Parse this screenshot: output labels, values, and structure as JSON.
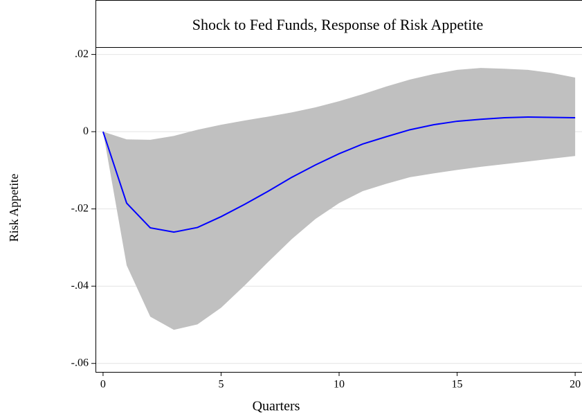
{
  "chart_data": {
    "type": "line",
    "title": "Shock to Fed Funds, Response of Risk Appetite",
    "xlabel": "Quarters",
    "ylabel": "Risk Appetite",
    "x": [
      0,
      1,
      2,
      3,
      4,
      5,
      6,
      7,
      8,
      9,
      10,
      11,
      12,
      13,
      14,
      15,
      16,
      17,
      18,
      19,
      20
    ],
    "series": [
      {
        "color": "#0000ff",
        "values": [
          0,
          -0.0185,
          -0.0249,
          -0.026,
          -0.0248,
          -0.022,
          -0.0188,
          -0.0154,
          -0.0118,
          -0.0086,
          -0.0057,
          -0.0032,
          -0.0013,
          0.0005,
          0.0018,
          0.0027,
          0.0032,
          0.0036,
          0.0038,
          0.0037,
          0.0036
        ]
      }
    ],
    "band": {
      "color": "#c0c0c0",
      "upper": [
        0,
        -0.002,
        -0.0021,
        -0.0011,
        0.0005,
        0.0018,
        0.0029,
        0.0039,
        0.005,
        0.0063,
        0.0079,
        0.0097,
        0.0117,
        0.0135,
        0.0149,
        0.016,
        0.0165,
        0.0163,
        0.016,
        0.0152,
        0.014
      ],
      "lower": [
        0,
        -0.0346,
        -0.0479,
        -0.0513,
        -0.0499,
        -0.0456,
        -0.0398,
        -0.0337,
        -0.0278,
        -0.0226,
        -0.0185,
        -0.0154,
        -0.0135,
        -0.0118,
        -0.0108,
        -0.0099,
        -0.0091,
        -0.0084,
        -0.0077,
        -0.007,
        -0.0063
      ]
    },
    "xlim": [
      -0.32,
      20.29
    ],
    "ylim": [
      -0.0622,
      0.0219
    ],
    "xticks": [
      0,
      5,
      10,
      15,
      20
    ],
    "yticks": [
      {
        "value": 0.02,
        "label": ".02"
      },
      0,
      {
        "value": -0.02,
        "label": "-.02"
      },
      {
        "value": -0.04,
        "label": "-.04"
      },
      {
        "value": -0.06,
        "label": "-.06"
      }
    ],
    "grid": true
  }
}
